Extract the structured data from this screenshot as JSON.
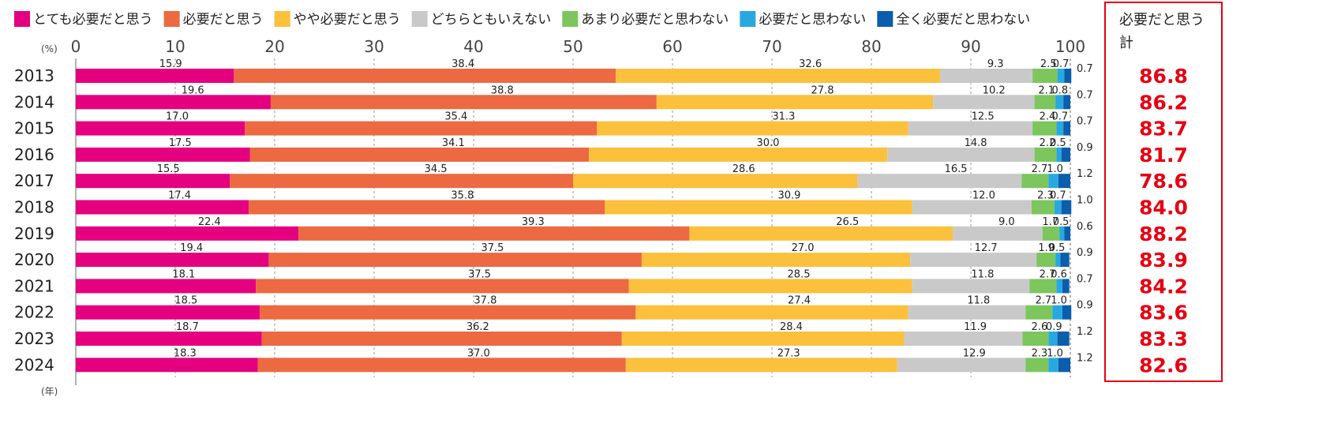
{
  "chart_data": {
    "type": "bar",
    "orientation": "horizontal",
    "stacked": true,
    "unit_label": "(%)",
    "year_unit_label": "(年)",
    "xlim": [
      0,
      100
    ],
    "x_ticks": [
      "0",
      "10",
      "20",
      "30",
      "40",
      "50",
      "60",
      "70",
      "80",
      "90",
      "100"
    ],
    "grid": "dashed vertical lines",
    "legend_position": "top",
    "categories": [
      "2013",
      "2014",
      "2015",
      "2016",
      "2017",
      "2018",
      "2019",
      "2020",
      "2021",
      "2022",
      "2023",
      "2024"
    ],
    "series": [
      {
        "name": "とても必要だと思う",
        "color": "#e4007f",
        "values": [
          15.9,
          19.6,
          17.0,
          17.5,
          15.5,
          17.4,
          22.4,
          19.4,
          18.1,
          18.5,
          18.7,
          18.3
        ]
      },
      {
        "name": "必要だと思う",
        "color": "#ec6941",
        "values": [
          38.4,
          38.8,
          35.4,
          34.1,
          34.5,
          35.8,
          39.3,
          37.5,
          37.5,
          37.8,
          36.2,
          37.0
        ]
      },
      {
        "name": "やや必要だと思う",
        "color": "#fbc03c",
        "values": [
          32.6,
          27.8,
          31.3,
          30.0,
          28.6,
          30.9,
          26.5,
          27.0,
          28.5,
          27.4,
          28.4,
          27.3
        ]
      },
      {
        "name": "どちらともいえない",
        "color": "#c9c9c9",
        "values": [
          9.3,
          10.2,
          12.5,
          14.8,
          16.5,
          12.0,
          9.0,
          12.7,
          11.8,
          11.8,
          11.9,
          12.9
        ]
      },
      {
        "name": "あまり必要だと思わない",
        "color": "#7cc65d",
        "values": [
          2.5,
          2.1,
          2.4,
          2.2,
          2.7,
          2.3,
          1.7,
          1.9,
          2.7,
          2.7,
          2.6,
          2.3
        ]
      },
      {
        "name": "必要だと思わない",
        "color": "#29a8e0",
        "values": [
          0.7,
          0.8,
          0.7,
          0.5,
          1.0,
          0.7,
          0.5,
          0.5,
          0.6,
          1.0,
          0.9,
          1.0
        ]
      },
      {
        "name": "全く必要だと思わない",
        "color": "#0b5eab",
        "values": [
          0.7,
          0.7,
          0.7,
          0.9,
          1.2,
          1.0,
          0.6,
          0.9,
          0.7,
          0.9,
          1.2,
          1.2
        ]
      }
    ],
    "total_box": {
      "title_line1": "必要だと思う",
      "title_line2": "計",
      "values": [
        "86.8",
        "86.2",
        "83.7",
        "81.7",
        "78.6",
        "84.0",
        "88.2",
        "83.9",
        "84.2",
        "83.6",
        "83.3",
        "82.6"
      ],
      "value_color": "#e60012",
      "border_color": "#e60012"
    }
  }
}
